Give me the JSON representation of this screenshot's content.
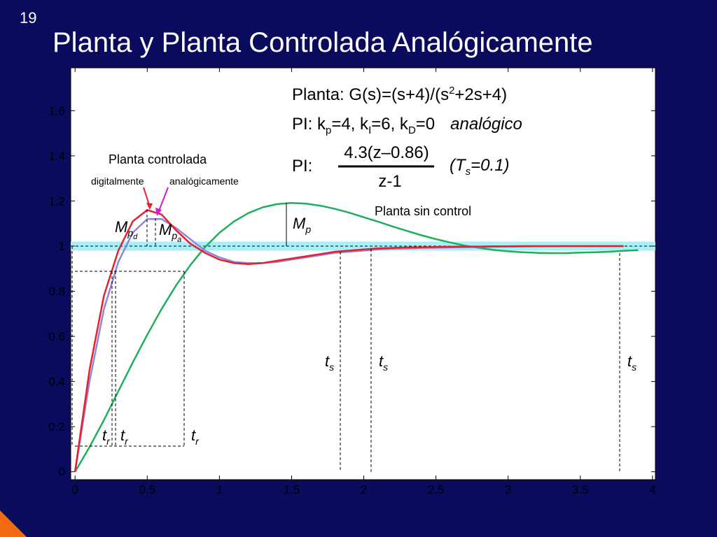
{
  "slide_number": "19",
  "title": "Planta y Planta Controlada Analógicamente",
  "chart_data": {
    "type": "line",
    "x": [
      0,
      0.1,
      0.2,
      0.3,
      0.4,
      0.5,
      0.6,
      0.7,
      0.8,
      0.9,
      1,
      1.1,
      1.2,
      1.3,
      1.4,
      1.5,
      1.6,
      1.7,
      1.8,
      1.9,
      2,
      2.1,
      2.2,
      2.3,
      2.4,
      2.5,
      2.6,
      2.7,
      2.8,
      2.9,
      3,
      3.1,
      3.2,
      3.3,
      3.4,
      3.5,
      3.6,
      3.7,
      3.8,
      3.9
    ],
    "series": [
      {
        "name": "digitalmente",
        "color": "#e3212b",
        "values": [
          0,
          0.45,
          0.78,
          0.98,
          1.11,
          1.16,
          1.14,
          1.07,
          1.01,
          0.97,
          0.94,
          0.925,
          0.92,
          0.925,
          0.935,
          0.945,
          0.955,
          0.965,
          0.975,
          0.98,
          0.985,
          0.99,
          0.992,
          0.994,
          0.995,
          0.996,
          0.997,
          0.998,
          0.998,
          0.999,
          0.999,
          1,
          1,
          1,
          1,
          1,
          1,
          1,
          1,
          null
        ]
      },
      {
        "name": "analógicamente",
        "color": "#8f86dc",
        "values": [
          0,
          0.4,
          0.72,
          0.93,
          1.06,
          1.12,
          1.12,
          1.08,
          1.03,
          0.98,
          0.95,
          0.93,
          0.925,
          0.925,
          0.93,
          0.94,
          0.95,
          0.96,
          0.97,
          0.975,
          0.98,
          0.985,
          0.988,
          0.99,
          0.992,
          0.993,
          0.994,
          0.995,
          0.996,
          0.997,
          0.998,
          0.998,
          0.999,
          0.999,
          1,
          1,
          1,
          1,
          1,
          null
        ]
      },
      {
        "name": "Planta sin control",
        "color": "#1fae5b",
        "values": [
          0,
          0.109,
          0.229,
          0.357,
          0.485,
          0.607,
          0.722,
          0.826,
          0.917,
          0.995,
          1.059,
          1.109,
          1.146,
          1.172,
          1.186,
          1.191,
          1.188,
          1.179,
          1.165,
          1.148,
          1.128,
          1.108,
          1.087,
          1.067,
          1.048,
          1.031,
          1.016,
          1.002,
          0.992,
          0.983,
          0.977,
          0.973,
          0.97,
          0.969,
          0.969,
          0.971,
          0.973,
          0.975,
          0.979,
          0.982
        ]
      }
    ],
    "xlim": [
      -0.03,
      4.02
    ],
    "ylim": [
      -0.035,
      1.79
    ],
    "xticks": [
      0,
      0.5,
      1,
      1.5,
      2,
      2.5,
      3,
      3.5,
      4
    ],
    "yticks": [
      0,
      0.2,
      0.4,
      0.6,
      0.8,
      1,
      1.2,
      1.4,
      1.6
    ],
    "setpoint": 1,
    "band": [
      0.98,
      1.02
    ],
    "legend_title": "Planta controlada",
    "formulas": {
      "plant": [
        "Planta: G(s)=(s+4)/(s",
        "2",
        "+2s+4)"
      ],
      "gains": [
        "PI: k",
        "p",
        "=4,   k",
        "I",
        "=6,   k",
        "D",
        "=0"
      ],
      "mode": "analógico",
      "pi_label": "PI:",
      "numerator": "4.3(z–0.86)",
      "denominator": "z-1",
      "sampling": [
        "(T",
        "s",
        "=0.1)"
      ]
    },
    "annotations": {
      "mp": [
        "M",
        "p"
      ],
      "mpd": [
        "M",
        "p",
        "d"
      ],
      "mpa": [
        "M",
        "p",
        "a"
      ],
      "tr": [
        "t",
        "r"
      ],
      "ts": [
        "t",
        "s"
      ]
    }
  }
}
